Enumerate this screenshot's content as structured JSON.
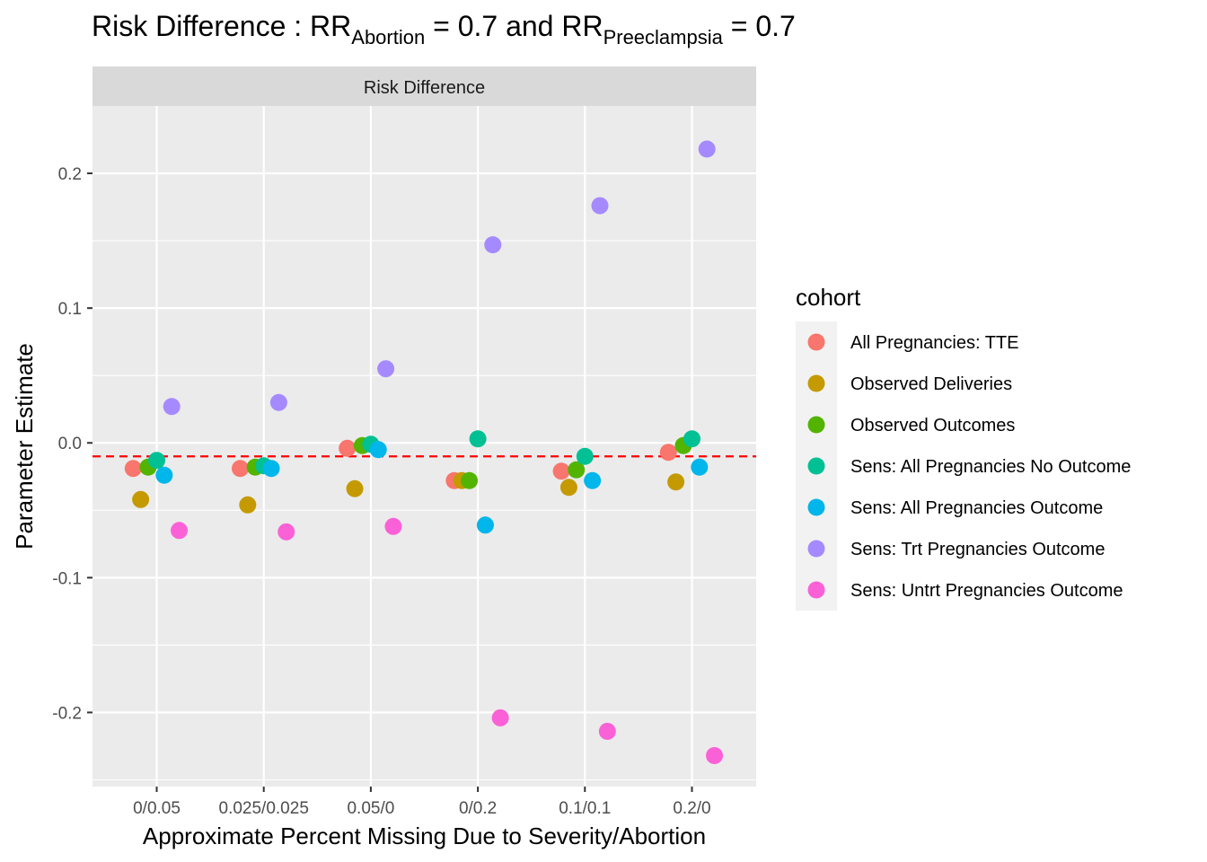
{
  "chart_data": {
    "type": "scatter",
    "title": {
      "prefix": "Risk Difference :  RR",
      "sub1": "Abortion",
      "mid": " = 0.7  and  RR",
      "sub2": "Preeclampsia",
      "suffix": " = 0.7"
    },
    "facet_label": "Risk Difference",
    "xlabel": "Approximate Percent Missing Due to Severity/Abortion",
    "ylabel": "Parameter Estimate",
    "categories": [
      "0/0.05",
      "0.025/0.025",
      "0.05/0",
      "0/0.2",
      "0.1/0.1",
      "0.2/0"
    ],
    "yticks": [
      "-0.2",
      "-0.1",
      "0.0",
      "0.1",
      "0.2"
    ],
    "ylim": [
      -0.255,
      0.25
    ],
    "reference_line": {
      "y": -0.01,
      "color": "#ff0000",
      "style": "dashed"
    },
    "grid": true,
    "legend": {
      "title": "cohort",
      "position": "right"
    },
    "series": [
      {
        "name": "All Pregnancies: TTE",
        "color": "#F8766D",
        "jitter": [
          -0.22,
          -0.22,
          -0.22,
          -0.22,
          -0.22,
          -0.22
        ],
        "values": [
          -0.019,
          -0.019,
          -0.004,
          -0.028,
          -0.021,
          -0.007
        ]
      },
      {
        "name": "Observed Deliveries",
        "color": "#C49A00",
        "jitter": [
          -0.15,
          -0.15,
          -0.15,
          -0.15,
          -0.15,
          -0.15
        ],
        "values": [
          -0.042,
          -0.046,
          -0.034,
          -0.028,
          -0.033,
          -0.029
        ]
      },
      {
        "name": "Observed Outcomes",
        "color": "#53B400",
        "jitter": [
          -0.08,
          -0.08,
          -0.08,
          -0.08,
          -0.08,
          -0.08
        ],
        "values": [
          -0.018,
          -0.018,
          -0.002,
          -0.028,
          -0.02,
          -0.002
        ]
      },
      {
        "name": "Sens: All Pregnancies No Outcome",
        "color": "#00C094",
        "jitter": [
          0,
          0,
          0,
          0,
          0,
          0
        ],
        "values": [
          -0.013,
          -0.017,
          -0.001,
          0.003,
          -0.01,
          0.003
        ]
      },
      {
        "name": "Sens: All Pregnancies Outcome",
        "color": "#00B6EB",
        "jitter": [
          0.07,
          0.07,
          0.07,
          0.07,
          0.07,
          0.07
        ],
        "values": [
          -0.024,
          -0.019,
          -0.005,
          -0.061,
          -0.028,
          -0.018
        ]
      },
      {
        "name": "Sens: Trt Pregnancies Outcome",
        "color": "#A58AFF",
        "jitter": [
          0.14,
          0.14,
          0.14,
          0.14,
          0.14,
          0.14
        ],
        "values": [
          0.027,
          0.03,
          0.055,
          0.147,
          0.176,
          0.218
        ]
      },
      {
        "name": "Sens: Untrt Pregnancies Outcome",
        "color": "#FB61D7",
        "jitter": [
          0.21,
          0.21,
          0.21,
          0.21,
          0.21,
          0.21
        ],
        "values": [
          -0.065,
          -0.066,
          -0.062,
          -0.204,
          -0.214,
          -0.232
        ]
      }
    ],
    "colors": {
      "panel": "#EBEBEB",
      "strip": "#D9D9D9",
      "gridline": "#FFFFFF"
    }
  }
}
